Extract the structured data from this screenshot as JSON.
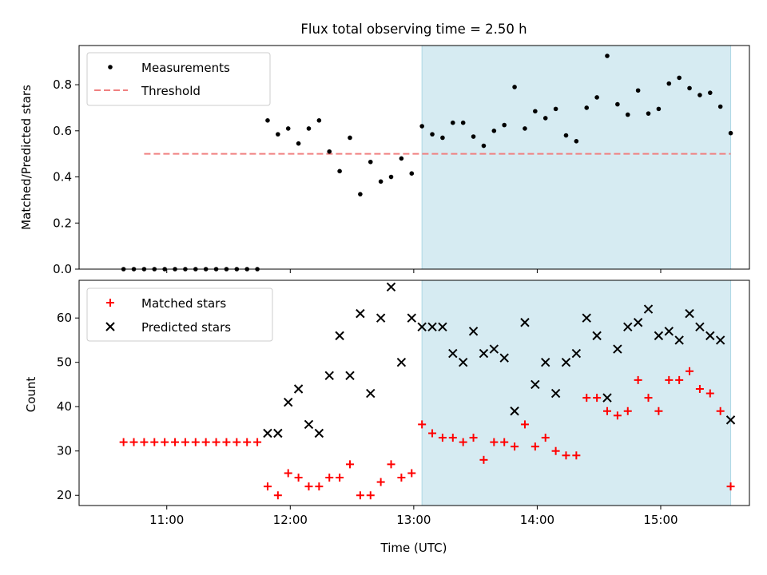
{
  "title": "Flux total observing time = 2.50 h",
  "chart_data": [
    {
      "type": "scatter",
      "ylabel": "Matched/Predicted stars",
      "xlabel": "",
      "ylim": [
        0,
        0.97
      ],
      "yticks": [
        0.0,
        0.2,
        0.4,
        0.6,
        0.8
      ],
      "ytick_labels": [
        "0.0",
        "0.2",
        "0.4",
        "0.6",
        "0.8"
      ],
      "xticks": [
        "11:00",
        "12:00",
        "13:00",
        "14:00",
        "15:00"
      ],
      "xtick_labels_shown": false,
      "legend": {
        "position": "top-left",
        "entries": [
          "Measurements",
          "Threshold"
        ]
      },
      "shaded_region": {
        "x_start": "13:04",
        "x_end": "15:34",
        "color": "#add8e6"
      },
      "series": [
        {
          "name": "Measurements",
          "marker": "dot",
          "color": "#000000",
          "x": [
            "10:39",
            "10:44",
            "10:49",
            "10:54",
            "10:59",
            "11:04",
            "11:09",
            "11:14",
            "11:19",
            "11:24",
            "11:29",
            "11:34",
            "11:39",
            "11:44",
            "11:49",
            "11:54",
            "11:59",
            "12:04",
            "12:09",
            "12:14",
            "12:19",
            "12:24",
            "12:29",
            "12:34",
            "12:39",
            "12:44",
            "12:49",
            "12:54",
            "12:59",
            "13:04",
            "13:09",
            "13:14",
            "13:19",
            "13:24",
            "13:29",
            "13:34",
            "13:39",
            "13:44",
            "13:49",
            "13:54",
            "13:59",
            "14:04",
            "14:09",
            "14:14",
            "14:19",
            "14:24",
            "14:29",
            "14:34",
            "14:39",
            "14:44",
            "14:49",
            "14:54",
            "14:59",
            "15:04",
            "15:09",
            "15:14",
            "15:19",
            "15:24",
            "15:29",
            "15:34"
          ],
          "values": [
            0,
            0,
            0,
            0,
            0,
            0,
            0,
            0,
            0,
            0,
            0,
            0,
            0,
            0,
            0.645,
            0.585,
            0.61,
            0.545,
            0.61,
            0.645,
            0.51,
            0.425,
            0.57,
            0.325,
            0.465,
            0.38,
            0.4,
            0.48,
            0.415,
            0.62,
            0.585,
            0.57,
            0.635,
            0.635,
            0.575,
            0.535,
            0.6,
            0.625,
            0.79,
            0.61,
            0.685,
            0.655,
            0.695,
            0.58,
            0.555,
            0.7,
            0.745,
            0.925,
            0.715,
            0.67,
            0.775,
            0.675,
            0.695,
            0.805,
            0.83,
            0.785,
            0.755,
            0.765,
            0.705,
            0.59
          ]
        },
        {
          "name": "Threshold",
          "marker": "dashed-line",
          "color": "#f08080",
          "x": [
            "10:49",
            "15:34"
          ],
          "values": [
            0.5,
            0.5
          ]
        }
      ]
    },
    {
      "type": "scatter",
      "ylabel": "Count",
      "xlabel": "Time (UTC)",
      "ylim": [
        17.7,
        68.5
      ],
      "yticks": [
        20,
        30,
        40,
        50,
        60
      ],
      "ytick_labels": [
        "20",
        "30",
        "40",
        "50",
        "60"
      ],
      "xticks": [
        "11:00",
        "12:00",
        "13:00",
        "14:00",
        "15:00"
      ],
      "xtick_labels_shown": true,
      "legend": {
        "position": "top-left",
        "entries": [
          "Matched stars",
          "Predicted stars"
        ]
      },
      "shaded_region": {
        "x_start": "13:04",
        "x_end": "15:34",
        "color": "#add8e6"
      },
      "series": [
        {
          "name": "Matched stars",
          "marker": "plus",
          "color": "#ff0000",
          "x": [
            "10:39",
            "10:44",
            "10:49",
            "10:54",
            "10:59",
            "11:04",
            "11:09",
            "11:14",
            "11:19",
            "11:24",
            "11:29",
            "11:34",
            "11:39",
            "11:44",
            "11:49",
            "11:54",
            "11:59",
            "12:04",
            "12:09",
            "12:14",
            "12:19",
            "12:24",
            "12:29",
            "12:34",
            "12:39",
            "12:44",
            "12:49",
            "12:54",
            "12:59",
            "13:04",
            "13:09",
            "13:14",
            "13:19",
            "13:24",
            "13:29",
            "13:34",
            "13:39",
            "13:44",
            "13:49",
            "13:54",
            "13:59",
            "14:04",
            "14:09",
            "14:14",
            "14:19",
            "14:24",
            "14:29",
            "14:34",
            "14:39",
            "14:44",
            "14:49",
            "14:54",
            "14:59",
            "15:04",
            "15:09",
            "15:14",
            "15:19",
            "15:24",
            "15:29",
            "15:34"
          ],
          "values": [
            32,
            32,
            32,
            32,
            32,
            32,
            32,
            32,
            32,
            32,
            32,
            32,
            32,
            32,
            22,
            20,
            25,
            24,
            22,
            22,
            24,
            24,
            27,
            20,
            20,
            23,
            27,
            24,
            25,
            36,
            34,
            33,
            33,
            32,
            33,
            28,
            32,
            32,
            31,
            36,
            31,
            33,
            30,
            29,
            29,
            42,
            42,
            39,
            38,
            39,
            46,
            42,
            39,
            46,
            46,
            48,
            44,
            43,
            39,
            22
          ]
        },
        {
          "name": "Predicted stars",
          "marker": "x",
          "color": "#000000",
          "x": [
            "11:49",
            "11:54",
            "11:59",
            "12:04",
            "12:09",
            "12:14",
            "12:19",
            "12:24",
            "12:29",
            "12:34",
            "12:39",
            "12:44",
            "12:49",
            "12:54",
            "12:59",
            "13:04",
            "13:09",
            "13:14",
            "13:19",
            "13:24",
            "13:29",
            "13:34",
            "13:39",
            "13:44",
            "13:49",
            "13:54",
            "13:59",
            "14:04",
            "14:09",
            "14:14",
            "14:19",
            "14:24",
            "14:29",
            "14:34",
            "14:39",
            "14:44",
            "14:49",
            "14:54",
            "14:59",
            "15:04",
            "15:09",
            "15:14",
            "15:19",
            "15:24",
            "15:29",
            "15:34"
          ],
          "values": [
            34,
            34,
            41,
            44,
            36,
            34,
            47,
            56,
            47,
            61,
            43,
            60,
            67,
            50,
            60,
            58,
            58,
            58,
            52,
            50,
            57,
            52,
            53,
            51,
            39,
            59,
            45,
            50,
            43,
            50,
            52,
            60,
            56,
            42,
            53,
            58,
            59,
            62,
            56,
            57,
            55,
            61,
            58,
            56,
            55,
            37
          ]
        }
      ]
    }
  ]
}
